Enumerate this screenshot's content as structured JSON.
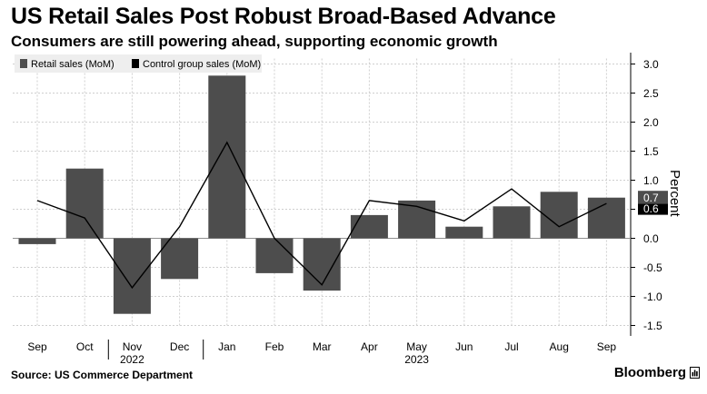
{
  "title": "US Retail Sales Post Robust Broad-Based Advance",
  "subtitle": "Consumers are still powering ahead, supporting economic growth",
  "source": "Source: US Commerce Department",
  "brand": "Bloomberg",
  "colors": {
    "bar": "#4d4d4d",
    "line": "#000000",
    "grid": "#cfcfcf",
    "zero": "#8f8f8f"
  },
  "chart_data": {
    "type": "bar",
    "categories": [
      "Sep",
      "Oct",
      "Nov",
      "Dec",
      "Jan",
      "Feb",
      "Mar",
      "Apr",
      "May",
      "Jun",
      "Jul",
      "Aug",
      "Sep"
    ],
    "year_labels": [
      {
        "label": "2022",
        "index": 2
      },
      {
        "label": "2023",
        "index": 8
      }
    ],
    "series": [
      {
        "name": "Retail sales (MoM)",
        "type": "bar",
        "values": [
          -0.1,
          1.2,
          -1.3,
          -0.7,
          2.8,
          -0.6,
          -0.9,
          0.4,
          0.65,
          0.2,
          0.55,
          0.8,
          0.7
        ]
      },
      {
        "name": "Control group sales (MoM)",
        "type": "line",
        "values": [
          0.65,
          0.35,
          -0.85,
          0.2,
          1.65,
          0.0,
          -0.8,
          0.65,
          0.55,
          0.3,
          0.85,
          0.2,
          0.6
        ]
      }
    ],
    "ylabel": "Percent",
    "ylim": [
      -1.5,
      3.0
    ],
    "yticks": [
      3.0,
      2.5,
      2.0,
      1.5,
      1.0,
      0.5,
      0.0,
      -0.5,
      -1.0,
      -1.5
    ],
    "yticks_display": [
      "3.0",
      "2.5",
      "2.0",
      "1.5",
      "1.0",
      "0.5",
      "0.0",
      "-0.5",
      "-1.0",
      "-1.5"
    ],
    "end_labels": [
      "0.7",
      "0.6"
    ],
    "grid": true,
    "legend": "top-left"
  }
}
